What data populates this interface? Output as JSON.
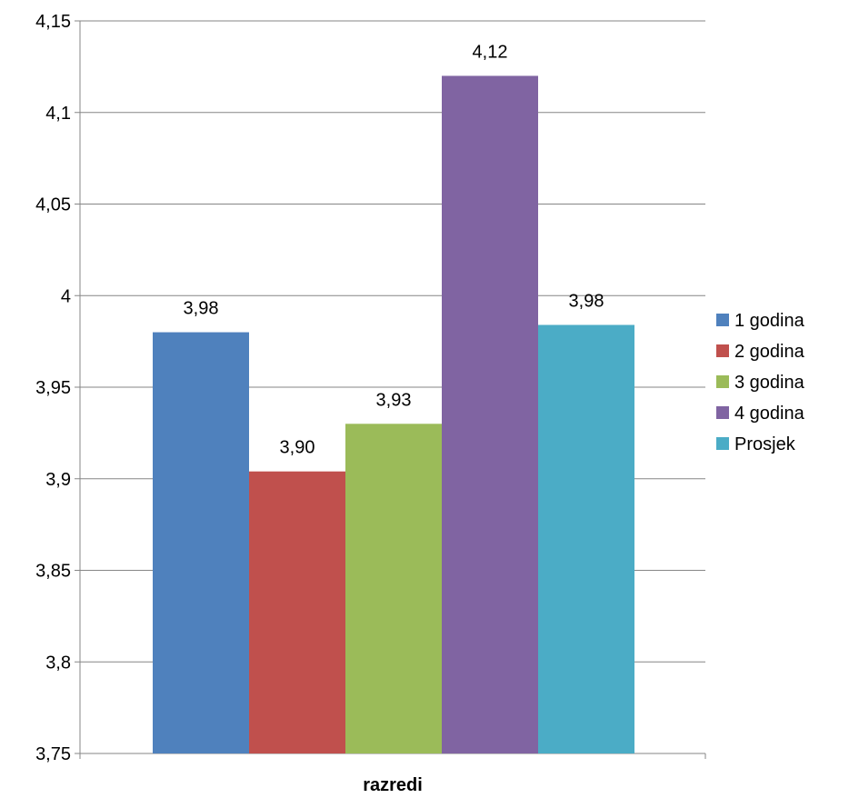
{
  "chart_data": {
    "type": "bar",
    "title": "",
    "xlabel": "razredi",
    "ylabel": "",
    "categories": [
      "razredi"
    ],
    "series": [
      {
        "name": "1 godina",
        "values": [
          3.98
        ],
        "label": "3,98",
        "color": "#4F81BD"
      },
      {
        "name": "2 godina",
        "values": [
          3.904
        ],
        "label": "3,90",
        "color": "#C0504D"
      },
      {
        "name": "3 godina",
        "values": [
          3.93
        ],
        "label": "3,93",
        "color": "#9BBB59"
      },
      {
        "name": "4 godina",
        "values": [
          4.12
        ],
        "label": "4,12",
        "color": "#8064A2"
      },
      {
        "name": "Prosjek",
        "values": [
          3.984
        ],
        "label": "3,98",
        "color": "#4BACC6"
      }
    ],
    "ylim": [
      3.75,
      4.15
    ],
    "yticks": [
      3.75,
      3.8,
      3.85,
      3.9,
      3.95,
      4.0,
      4.05,
      4.1,
      4.15
    ],
    "ytick_labels": [
      "3,75",
      "3,8",
      "3,85",
      "3,9",
      "3,95",
      "4",
      "4,05",
      "4,1",
      "4,15"
    ],
    "grid": true,
    "legend_position": "right"
  }
}
